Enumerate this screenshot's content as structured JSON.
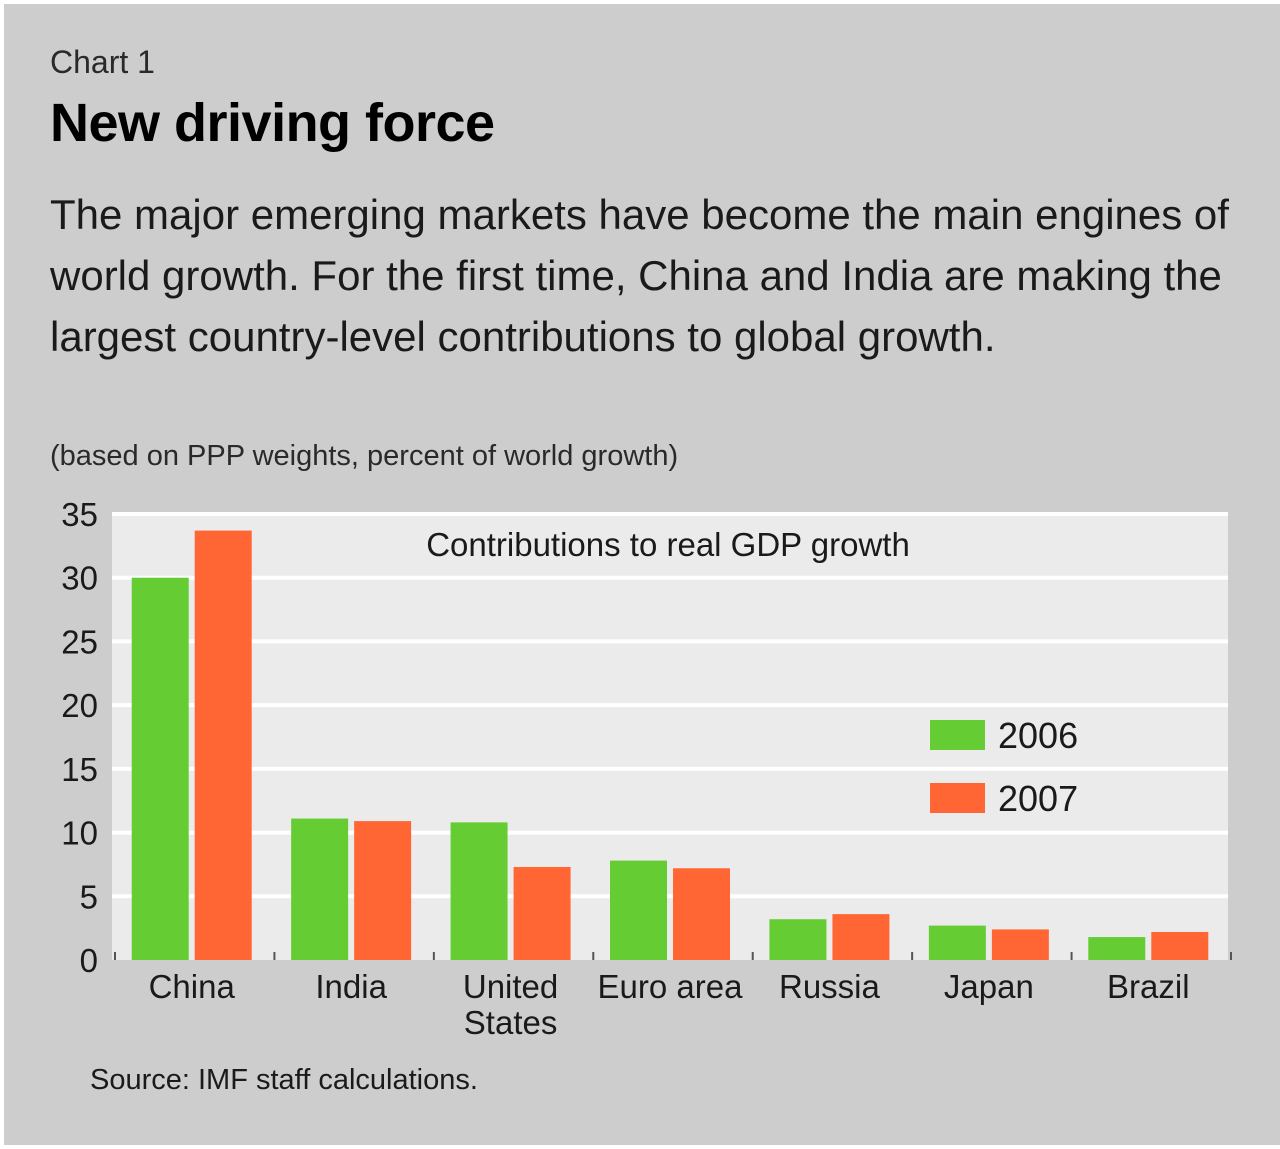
{
  "kicker": "Chart 1",
  "title": "New driving force",
  "description": "The major emerging markets have become the main engines of world growth. For the first time, China and India are making the largest country-level contributions to global growth.",
  "units_note": "(based on PPP weights, percent of world growth)",
  "source": "Source: IMF staff calculations.",
  "colors": {
    "s2006": "#66cc33",
    "s2007": "#ff6633",
    "plot_bg": "#ebebeb",
    "panel_bg": "#cdcdcd",
    "gridline": "#ffffff"
  },
  "chart_data": {
    "type": "bar",
    "title": "Contributions to real GDP growth",
    "xlabel": "",
    "ylabel": "percent of world growth",
    "ylim": [
      0,
      35
    ],
    "yticks": [
      0,
      5,
      10,
      15,
      20,
      25,
      30,
      35
    ],
    "grid": true,
    "legend_position": "right",
    "categories": [
      [
        "China"
      ],
      [
        "India"
      ],
      [
        "United",
        "States"
      ],
      [
        "Euro area"
      ],
      [
        "Russia"
      ],
      [
        "Japan"
      ],
      [
        "Brazil"
      ]
    ],
    "series": [
      {
        "name": "2006",
        "color": "#66cc33",
        "values": [
          30.0,
          11.1,
          10.8,
          7.8,
          3.2,
          2.7,
          1.8
        ]
      },
      {
        "name": "2007",
        "color": "#ff6633",
        "values": [
          33.7,
          10.9,
          7.3,
          7.2,
          3.6,
          2.4,
          2.2
        ]
      }
    ]
  }
}
